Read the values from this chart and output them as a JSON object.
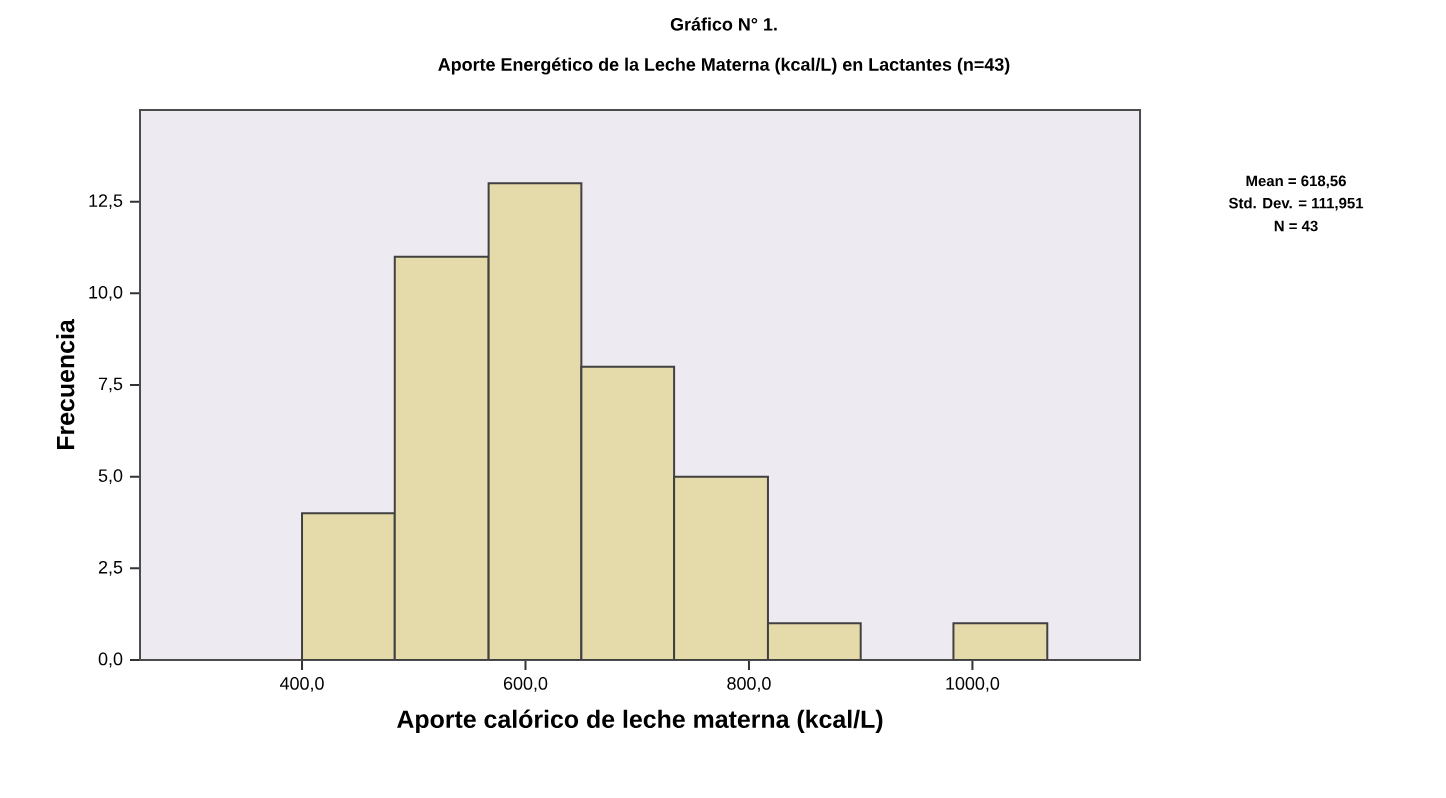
{
  "chart_data": {
    "type": "histogram",
    "title": "Gráfico N° 1.",
    "subtitle": "Aporte Energético de la Leche Materna (kcal/L) en Lactantes (n=43)",
    "xlabel": "Aporte calórico de leche materna (kcal/L)",
    "ylabel": "Frecuencia",
    "bins": [
      400,
      483,
      567,
      650,
      733,
      817,
      900,
      983,
      1067
    ],
    "values": [
      4,
      11,
      13,
      8,
      5,
      1,
      0,
      1
    ],
    "color": "#e5dbaa",
    "xlim": [
      255,
      1150
    ],
    "ylim": [
      0,
      15
    ],
    "xticks": [
      {
        "value": 400,
        "label": "400,0"
      },
      {
        "value": 600,
        "label": "600,0"
      },
      {
        "value": 800,
        "label": "800,0"
      },
      {
        "value": 1000,
        "label": "1000,0"
      }
    ],
    "yticks": [
      {
        "value": 0,
        "label": "0,0"
      },
      {
        "value": 2.5,
        "label": "2,5"
      },
      {
        "value": 5,
        "label": "5,0"
      },
      {
        "value": 7.5,
        "label": "7,5"
      },
      {
        "value": 10,
        "label": "10,0"
      },
      {
        "value": 12.5,
        "label": "12,5"
      }
    ],
    "annotations": [
      "Mean = 618,56",
      "Std. Dev. = 111,951",
      "N = 43"
    ]
  }
}
